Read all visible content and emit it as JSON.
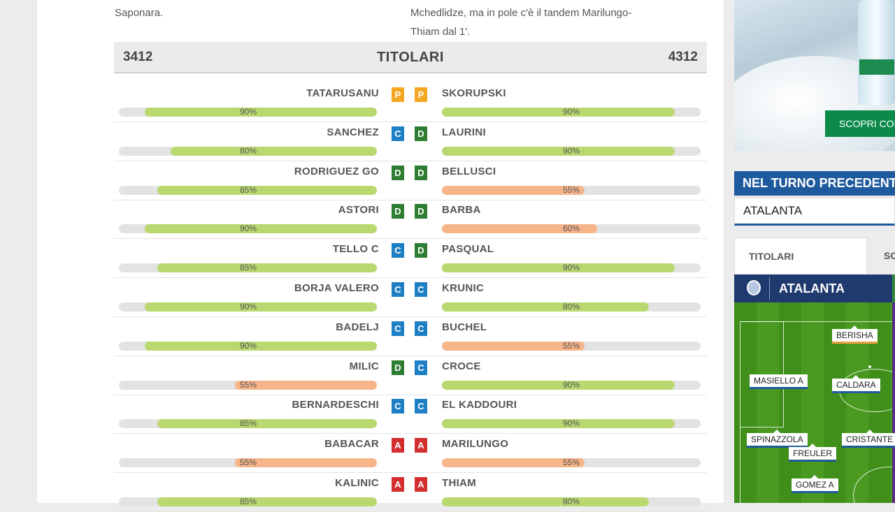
{
  "intro": {
    "left": "Saponara.",
    "right_line1": "Mchedlidze, ma in pole c'è il tandem Marilungo-",
    "right_line2": "Thiam dal 1'."
  },
  "lineup": {
    "module_left": "3412",
    "title": "TITOLARI",
    "module_right": "4312",
    "rows": [
      {
        "left_name": "TATARUSANU",
        "left_role": "P",
        "left_pct": "90%",
        "left_value": 90,
        "left_color": "green",
        "right_name": "SKORUPSKI",
        "right_role": "P",
        "right_pct": "90%",
        "right_value": 90,
        "right_color": "green"
      },
      {
        "left_name": "SANCHEZ",
        "left_role": "C",
        "left_pct": "80%",
        "left_value": 80,
        "left_color": "green",
        "right_name": "LAURINI",
        "right_role": "D",
        "right_pct": "90%",
        "right_value": 90,
        "right_color": "green"
      },
      {
        "left_name": "RODRIGUEZ GO",
        "left_role": "D",
        "left_pct": "85%",
        "left_value": 85,
        "left_color": "green",
        "right_name": "BELLUSCI",
        "right_role": "D",
        "right_pct": "55%",
        "right_value": 55,
        "right_color": "orange"
      },
      {
        "left_name": "ASTORI",
        "left_role": "D",
        "left_pct": "90%",
        "left_value": 90,
        "left_color": "green",
        "right_name": "BARBA",
        "right_role": "D",
        "right_pct": "60%",
        "right_value": 60,
        "right_color": "orange"
      },
      {
        "left_name": "TELLO C",
        "left_role": "C",
        "left_pct": "85%",
        "left_value": 85,
        "left_color": "green",
        "right_name": "PASQUAL",
        "right_role": "D",
        "right_pct": "90%",
        "right_value": 90,
        "right_color": "green"
      },
      {
        "left_name": "BORJA VALERO",
        "left_role": "C",
        "left_pct": "90%",
        "left_value": 90,
        "left_color": "green",
        "right_name": "KRUNIC",
        "right_role": "C",
        "right_pct": "80%",
        "right_value": 80,
        "right_color": "green"
      },
      {
        "left_name": "BADELJ",
        "left_role": "C",
        "left_pct": "90%",
        "left_value": 90,
        "left_color": "green",
        "right_name": "BUCHEL",
        "right_role": "C",
        "right_pct": "55%",
        "right_value": 55,
        "right_color": "orange"
      },
      {
        "left_name": "MILIC",
        "left_role": "D",
        "left_pct": "55%",
        "left_value": 55,
        "left_color": "orange",
        "right_name": "CROCE",
        "right_role": "C",
        "right_pct": "90%",
        "right_value": 90,
        "right_color": "green"
      },
      {
        "left_name": "BERNARDESCHI",
        "left_role": "C",
        "left_pct": "85%",
        "left_value": 85,
        "left_color": "green",
        "right_name": "EL KADDOURI",
        "right_role": "C",
        "right_pct": "90%",
        "right_value": 90,
        "right_color": "green"
      },
      {
        "left_name": "BABACAR",
        "left_role": "A",
        "left_pct": "55%",
        "left_value": 55,
        "left_color": "orange",
        "right_name": "MARILUNGO",
        "right_role": "A",
        "right_pct": "55%",
        "right_value": 55,
        "right_color": "orange"
      },
      {
        "left_name": "KALINIC",
        "left_role": "A",
        "left_pct": "85%",
        "left_value": 85,
        "left_color": "green",
        "right_name": "THIAM",
        "right_role": "A",
        "right_pct": "80%",
        "right_value": 80,
        "right_color": "green"
      }
    ]
  },
  "colors": {
    "P": "#f5a623",
    "C": "#1e7fc5",
    "D": "#2e7d32",
    "A": "#d32f2f",
    "bar_green": "#b9d870",
    "bar_orange": "#f7b58a"
  },
  "ad": {
    "button_label": "SCOPRI COD"
  },
  "sidebar": {
    "header": "NEL TURNO PRECEDENTE",
    "team_select": "ATALANTA",
    "tab_active": "TITOLARI",
    "tab_other": "SC",
    "field_team": "ATALANTA",
    "players": [
      "BERISHA",
      "MASIELLO A",
      "CALDARA",
      "SPINAZZOLA",
      "CRISTANTE",
      "FREULER",
      "GOMEZ A"
    ]
  }
}
